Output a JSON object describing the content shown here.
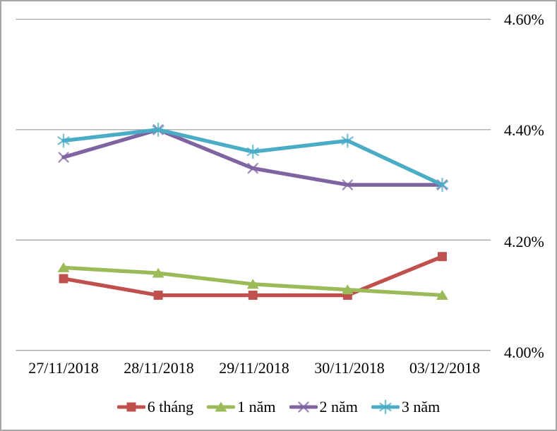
{
  "chart_data": {
    "type": "line",
    "title": "",
    "xlabel": "",
    "ylabel": "",
    "categories": [
      "27/11/2018",
      "28/11/2018",
      "29/11/2018",
      "30/11/2018",
      "03/12/2018"
    ],
    "series": [
      {
        "name": "6 tháng",
        "values": [
          4.13,
          4.1,
          4.1,
          4.1,
          4.17
        ],
        "color": "#C0504D",
        "marker": "square"
      },
      {
        "name": "1 năm",
        "values": [
          4.15,
          4.14,
          4.12,
          4.11,
          4.1
        ],
        "color": "#9BBB59",
        "marker": "triangle"
      },
      {
        "name": "2 năm",
        "values": [
          4.35,
          4.4,
          4.33,
          4.3,
          4.3
        ],
        "color": "#8064A2",
        "marker": "x"
      },
      {
        "name": "3 năm",
        "values": [
          4.38,
          4.4,
          4.36,
          4.38,
          4.3
        ],
        "color": "#4BACC6",
        "marker": "asterisk"
      }
    ],
    "ylim": [
      4.0,
      4.6
    ],
    "y_ticks": [
      4.6,
      4.4,
      4.2,
      4.0
    ],
    "y_tick_labels": [
      "4.60%",
      "4.40%",
      "4.20%",
      "4.00%"
    ],
    "y_axis_side": "right",
    "grid": true,
    "legend_position": "bottom",
    "colors": {
      "gridline": "#9C9C9C",
      "frame_border": "#A6A6A6",
      "text": "#000000",
      "background": "#FFFFFF"
    }
  }
}
